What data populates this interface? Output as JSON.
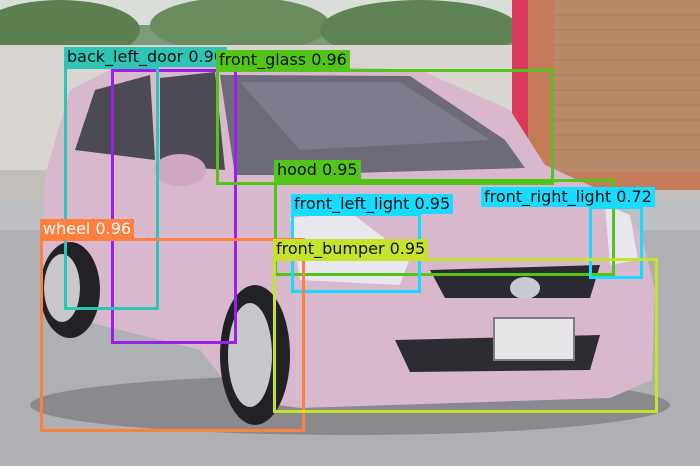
{
  "detections": [
    {
      "id": "back-left-door",
      "label": "back_left_door 0.96",
      "color": "#2ec4b6"
    },
    {
      "id": "front-glass",
      "label": "front_glass 0.96",
      "color": "#52c41a"
    },
    {
      "id": "hood",
      "label": "hood 0.95",
      "color": "#52c41a"
    },
    {
      "id": "front-right-light",
      "label": "front_right_light 0.72",
      "color": "#18dcff"
    },
    {
      "id": "front-left-light",
      "label": "front_left_light 0.95",
      "color": "#18dcff"
    },
    {
      "id": "wheel",
      "label": "wheel 0.96",
      "color": "#ff7f3f"
    },
    {
      "id": "front-bumper",
      "label": "front_bumper 0.95",
      "color": "#c6e22b"
    },
    {
      "id": "back-left-window",
      "label": "",
      "color": "#9b1fe8"
    }
  ],
  "plate_color": "#e9e6ea",
  "car_color": "#d8b8cc"
}
